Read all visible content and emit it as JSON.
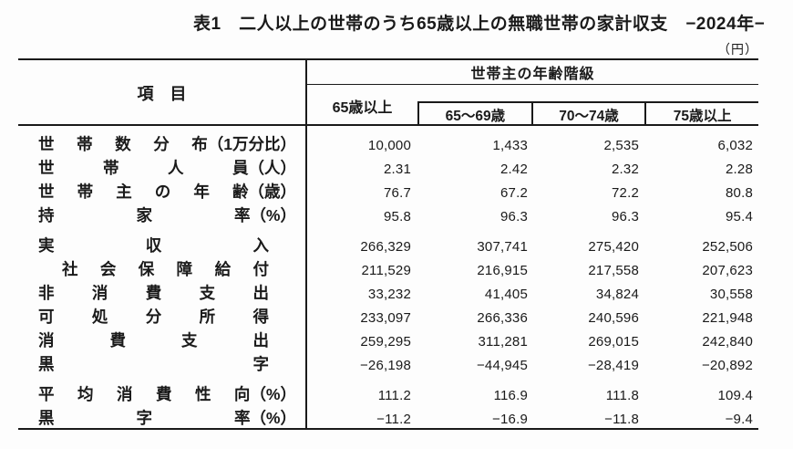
{
  "title": "表1　二人以上の世帯のうち65歳以上の無職世帯の家計収支　−2024年−",
  "unit_note": "（円）",
  "header": {
    "item_label": "項　目",
    "group_label": "世帯主の年齢階級",
    "columns": [
      "65歳以上",
      "65〜69歳",
      "70〜74歳",
      "75歳以上"
    ]
  },
  "rows": [
    {
      "label": "世帯数分布",
      "unit": "（1万分比）",
      "indent": false,
      "group_start": false,
      "values": [
        "10,000",
        "1,433",
        "2,535",
        "6,032"
      ]
    },
    {
      "label": "世帯人員",
      "unit": "（人）",
      "indent": false,
      "group_start": false,
      "values": [
        "2.31",
        "2.42",
        "2.32",
        "2.28"
      ]
    },
    {
      "label": "世帯主の年齢",
      "unit": "（歳）",
      "indent": false,
      "group_start": false,
      "values": [
        "76.7",
        "67.2",
        "72.2",
        "80.8"
      ]
    },
    {
      "label": "持家率",
      "unit": "（%）",
      "indent": false,
      "group_start": false,
      "values": [
        "95.8",
        "96.3",
        "96.3",
        "95.4"
      ]
    },
    {
      "label": "実収入",
      "unit": "",
      "indent": false,
      "group_start": true,
      "values": [
        "266,329",
        "307,741",
        "275,420",
        "252,506"
      ]
    },
    {
      "label": "社会保障給付",
      "unit": "",
      "indent": true,
      "group_start": false,
      "values": [
        "211,529",
        "216,915",
        "217,558",
        "207,623"
      ]
    },
    {
      "label": "非消費支出",
      "unit": "",
      "indent": false,
      "group_start": false,
      "values": [
        "33,232",
        "41,405",
        "34,824",
        "30,558"
      ]
    },
    {
      "label": "可処分所得",
      "unit": "",
      "indent": false,
      "group_start": false,
      "values": [
        "233,097",
        "266,336",
        "240,596",
        "221,948"
      ]
    },
    {
      "label": "消費支出",
      "unit": "",
      "indent": false,
      "group_start": false,
      "values": [
        "259,295",
        "311,281",
        "269,015",
        "242,840"
      ]
    },
    {
      "label": "黒字",
      "unit": "",
      "indent": false,
      "group_start": false,
      "values": [
        "−26,198",
        "−44,945",
        "−28,419",
        "−20,892"
      ]
    },
    {
      "label": "平均消費性向",
      "unit": "（%）",
      "indent": false,
      "group_start": true,
      "values": [
        "111.2",
        "116.9",
        "111.8",
        "109.4"
      ]
    },
    {
      "label": "黒字率",
      "unit": "（%）",
      "indent": false,
      "group_start": false,
      "values": [
        "−11.2",
        "−16.9",
        "−11.8",
        "−9.4"
      ]
    }
  ]
}
